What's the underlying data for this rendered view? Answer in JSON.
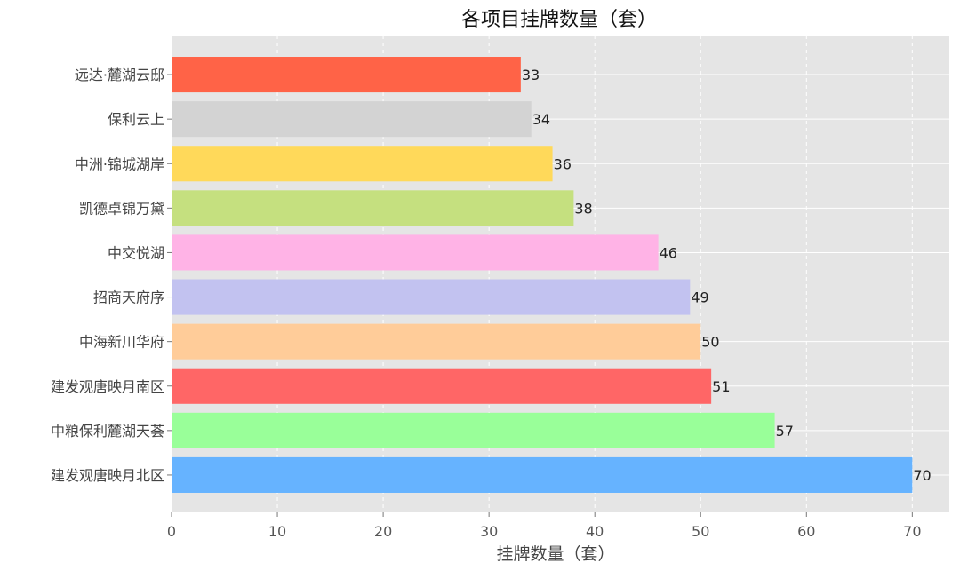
{
  "chart_data": {
    "type": "bar",
    "orientation": "horizontal",
    "title": "各项目挂牌数量（套）",
    "xlabel": "挂牌数量（套）",
    "ylabel": "",
    "xlim": [
      0,
      73.5
    ],
    "xticks": [
      0,
      10,
      20,
      30,
      40,
      50,
      60,
      70
    ],
    "grid": true,
    "categories": [
      "远达·麓湖云邸",
      "保利云上",
      "中洲·锦城湖岸",
      "凯德卓锦万黛",
      "中交悦湖",
      "招商天府序",
      "中海新川华府",
      "建发观唐映月南区",
      "中粮保利麓湖天荟",
      "建发观唐映月北区"
    ],
    "values": [
      33,
      34,
      36,
      38,
      46,
      49,
      50,
      51,
      57,
      70
    ],
    "colors": [
      "#FF6347",
      "#D3D3D3",
      "#FFD95A",
      "#C5E07F",
      "#FFB3E6",
      "#C2C2F0",
      "#FFCC99",
      "#FF6666",
      "#99FF99",
      "#66B3FF"
    ],
    "plot_background": "#E5E5E5",
    "grid_color": "#FFFFFF"
  }
}
